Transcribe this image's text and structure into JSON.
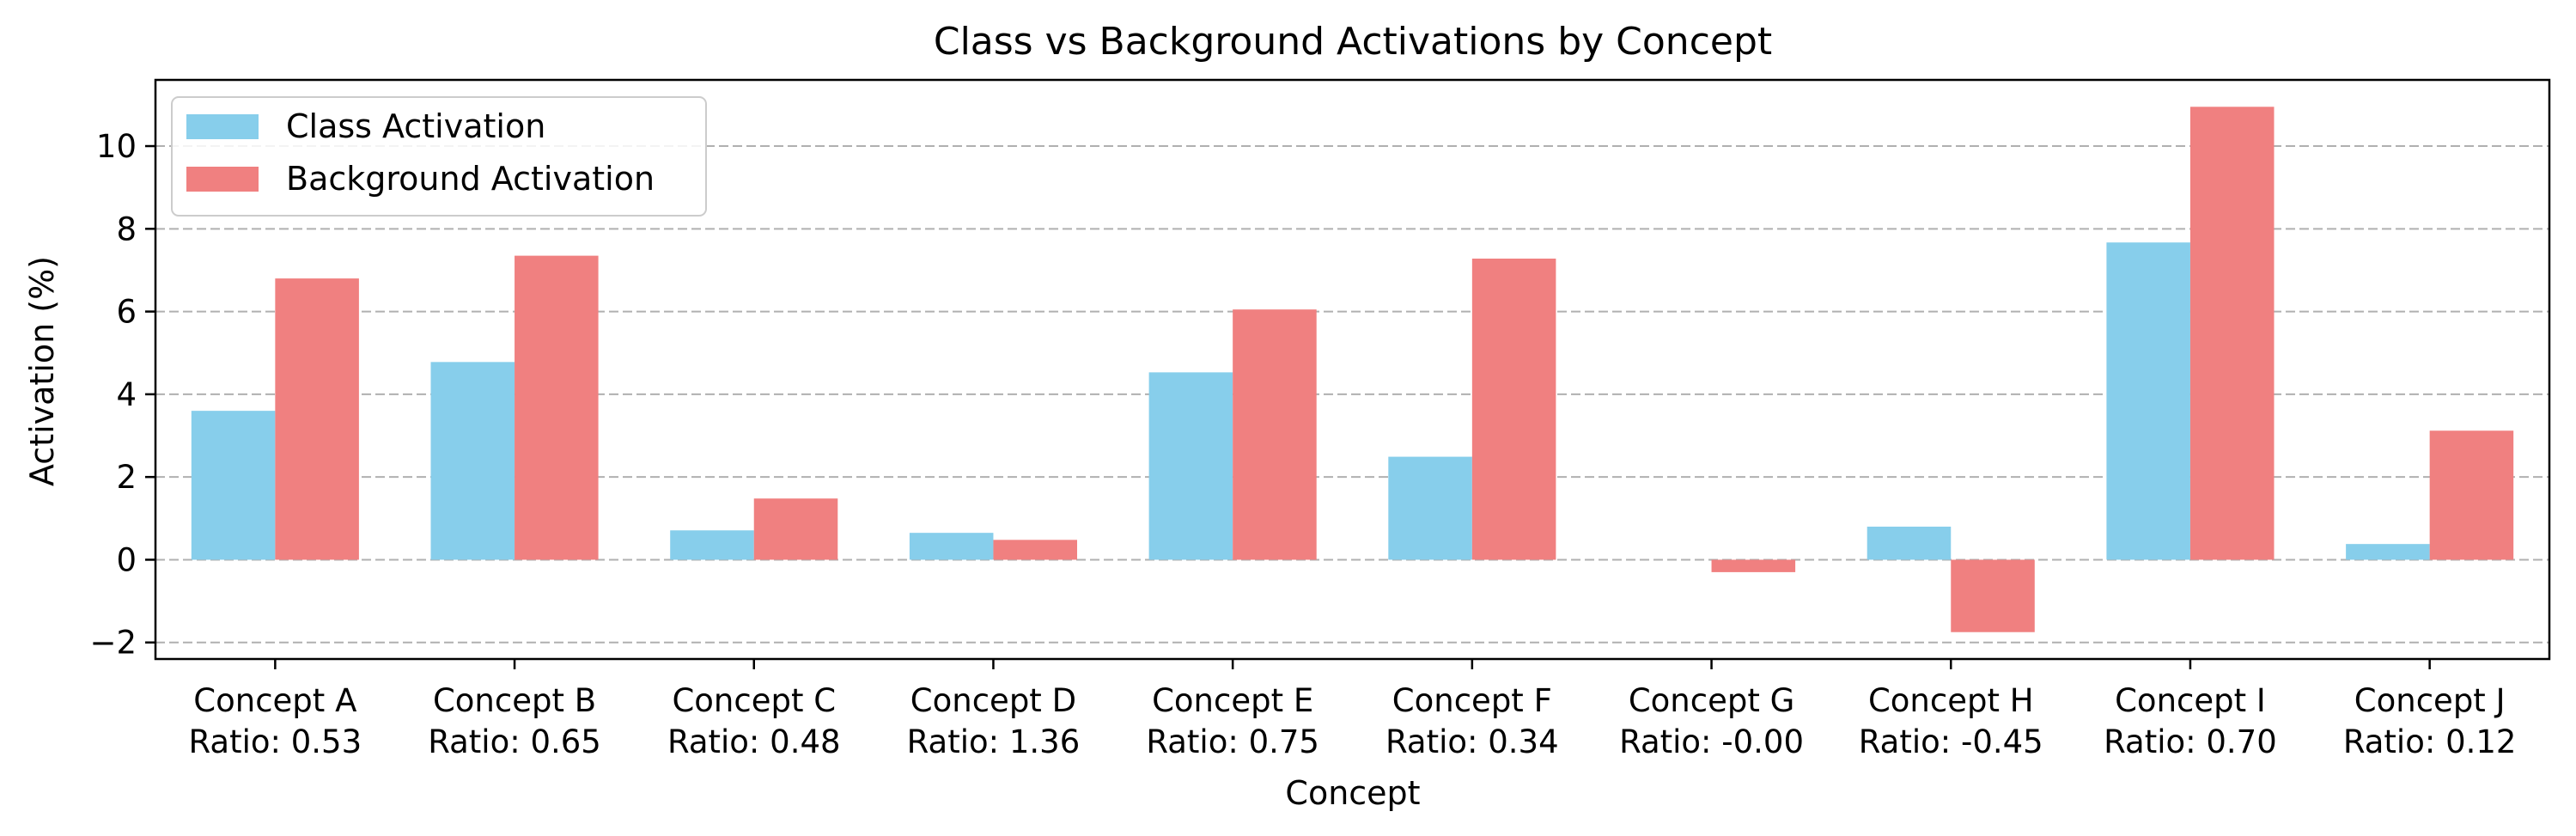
{
  "chart_data": {
    "type": "bar",
    "title": "Class vs Background Activations by Concept",
    "xlabel": "Concept",
    "ylabel": "Activation (%)",
    "categories": [
      "Concept A",
      "Concept B",
      "Concept C",
      "Concept D",
      "Concept E",
      "Concept F",
      "Concept G",
      "Concept H",
      "Concept I",
      "Concept J"
    ],
    "category_sublabels": [
      "Ratio: 0.53",
      "Ratio: 0.65",
      "Ratio: 0.48",
      "Ratio: 1.36",
      "Ratio: 0.75",
      "Ratio: 0.34",
      "Ratio: -0.00",
      "Ratio: -0.45",
      "Ratio: 0.70",
      "Ratio: 0.12"
    ],
    "series": [
      {
        "name": "Class Activation",
        "color": "#87ceeb",
        "values": [
          3.6,
          4.78,
          0.71,
          0.65,
          4.53,
          2.49,
          0.0,
          0.8,
          7.67,
          0.38
        ]
      },
      {
        "name": "Background Activation",
        "color": "#f08080",
        "values": [
          6.8,
          7.35,
          1.48,
          0.48,
          6.05,
          7.28,
          -0.3,
          -1.75,
          10.95,
          3.12
        ]
      }
    ],
    "ylim": [
      -2.4,
      11.6
    ],
    "yticks": [
      -2,
      0,
      2,
      4,
      6,
      8,
      10
    ],
    "grid": "y-dashed",
    "legend": "top-left"
  }
}
